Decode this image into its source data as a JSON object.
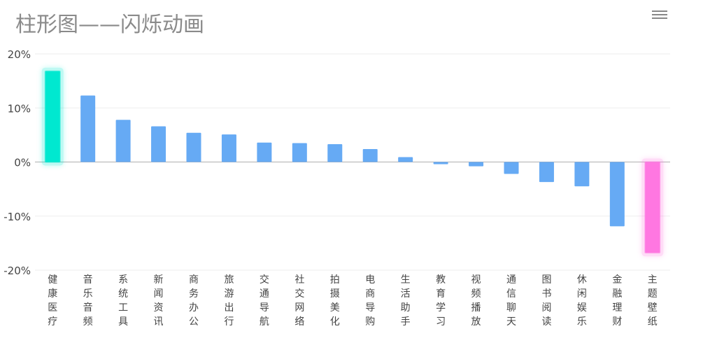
{
  "title": "柱形图——闪烁动画",
  "menu_icon": "hamburger-menu-icon",
  "colors": {
    "bar": "#66aaf4",
    "highlight_max": "#00e8d0",
    "highlight_min": "#ff77e1",
    "grid": "#eeeeee",
    "zero_line": "#b0b0b0",
    "axis_text": "#444444"
  },
  "chart_data": {
    "type": "bar",
    "title": "柱形图——闪烁动画",
    "categories": [
      "健康医疗",
      "音乐音频",
      "系统工具",
      "新闻资讯",
      "商务办公",
      "旅游出行",
      "交通导航",
      "社交网络",
      "拍摄美化",
      "电商导购",
      "生活助手",
      "教育学习",
      "视频播放",
      "通信聊天",
      "图书阅读",
      "休闲娱乐",
      "金融理财",
      "主题壁纸"
    ],
    "values": [
      16.8,
      12.3,
      7.8,
      6.6,
      5.4,
      5.1,
      3.6,
      3.5,
      3.3,
      2.4,
      0.9,
      -0.4,
      -0.8,
      -2.2,
      -3.7,
      -4.5,
      -11.9,
      -16.8
    ],
    "highlight": {
      "max_index": 0,
      "min_index": 17
    },
    "ylim": [
      -20,
      20
    ],
    "yticks": [
      20,
      10,
      0,
      -10,
      -20
    ],
    "ytick_labels": [
      "20%",
      "10%",
      "0%",
      "-10%",
      "-20%"
    ],
    "xlabel": "",
    "ylabel": "",
    "grid": true,
    "legend": "none"
  }
}
